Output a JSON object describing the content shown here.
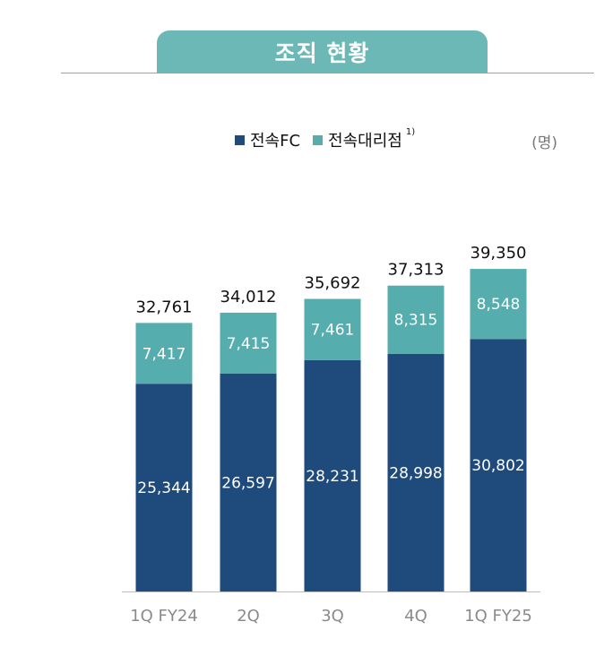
{
  "header": {
    "title": "조직 현황"
  },
  "legend": {
    "items": [
      {
        "label": "전속FC",
        "color": "#1f4a7c"
      },
      {
        "label": "전속대리점",
        "color": "#56adae",
        "superscript": "1)"
      }
    ]
  },
  "unit_label": "(명)",
  "chart_data": {
    "type": "bar",
    "stacked": true,
    "categories": [
      "1Q FY24",
      "2Q",
      "3Q",
      "4Q",
      "1Q FY25"
    ],
    "series": [
      {
        "name": "전속FC",
        "color": "#1f4a7c",
        "values": [
          25344,
          26597,
          28231,
          28998,
          30802
        ],
        "labels": [
          "25,344",
          "26,597",
          "28,231",
          "28,998",
          "30,802"
        ]
      },
      {
        "name": "전속대리점",
        "color": "#56adae",
        "values": [
          7417,
          7415,
          7461,
          8315,
          8548
        ],
        "labels": [
          "7,417",
          "7,415",
          "7,461",
          "8,315",
          "8,548"
        ]
      }
    ],
    "totals": [
      32761,
      34012,
      35692,
      37313,
      39350
    ],
    "total_labels": [
      "32,761",
      "34,012",
      "35,692",
      "37,313",
      "39,350"
    ],
    "title": "조직 현황",
    "ylabel": "(명)",
    "grid": false,
    "legend_position": "top-center"
  }
}
